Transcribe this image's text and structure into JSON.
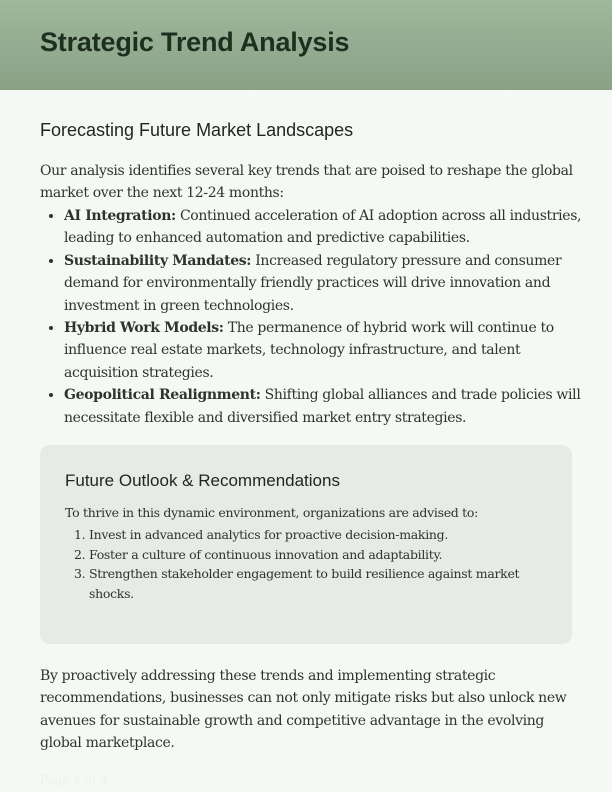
{
  "header": {
    "title": "Strategic Trend Analysis"
  },
  "section": {
    "title": "Forecasting Future Market Landscapes",
    "intro": "Our analysis identifies several key trends that are poised to reshape the global market over the next 12-24 months:",
    "trends": [
      {
        "label": "AI Integration:",
        "text": " Continued acceleration of AI adoption across all industries, leading to enhanced automation and predictive capabilities."
      },
      {
        "label": "Sustainability Mandates:",
        "text": " Increased regulatory pressure and consumer demand for environmentally friendly practices will drive innovation and investment in green technologies."
      },
      {
        "label": "Hybrid Work Models:",
        "text": " The permanence of hybrid work will continue to influence real estate markets, technology infrastructure, and talent acquisition strategies."
      },
      {
        "label": "Geopolitical Realignment:",
        "text": " Shifting global alliances and trade policies will necessitate flexible and diversified market entry strategies."
      }
    ]
  },
  "outlook": {
    "title": "Future Outlook & Recommendations",
    "lead": "To thrive in this dynamic environment, organizations are advised to:",
    "items": [
      "Invest in advanced analytics for proactive decision-making.",
      "Foster a culture of continuous innovation and adaptability.",
      "Strengthen stakeholder engagement to build resilience against market shocks."
    ]
  },
  "closing": "By proactively addressing these trends and implementing strategic recommendations, businesses can not only mitigate risks but also unlock new avenues for sustainable growth and competitive advantage in the evolving global marketplace.",
  "footer": "Page 4 of 4"
}
